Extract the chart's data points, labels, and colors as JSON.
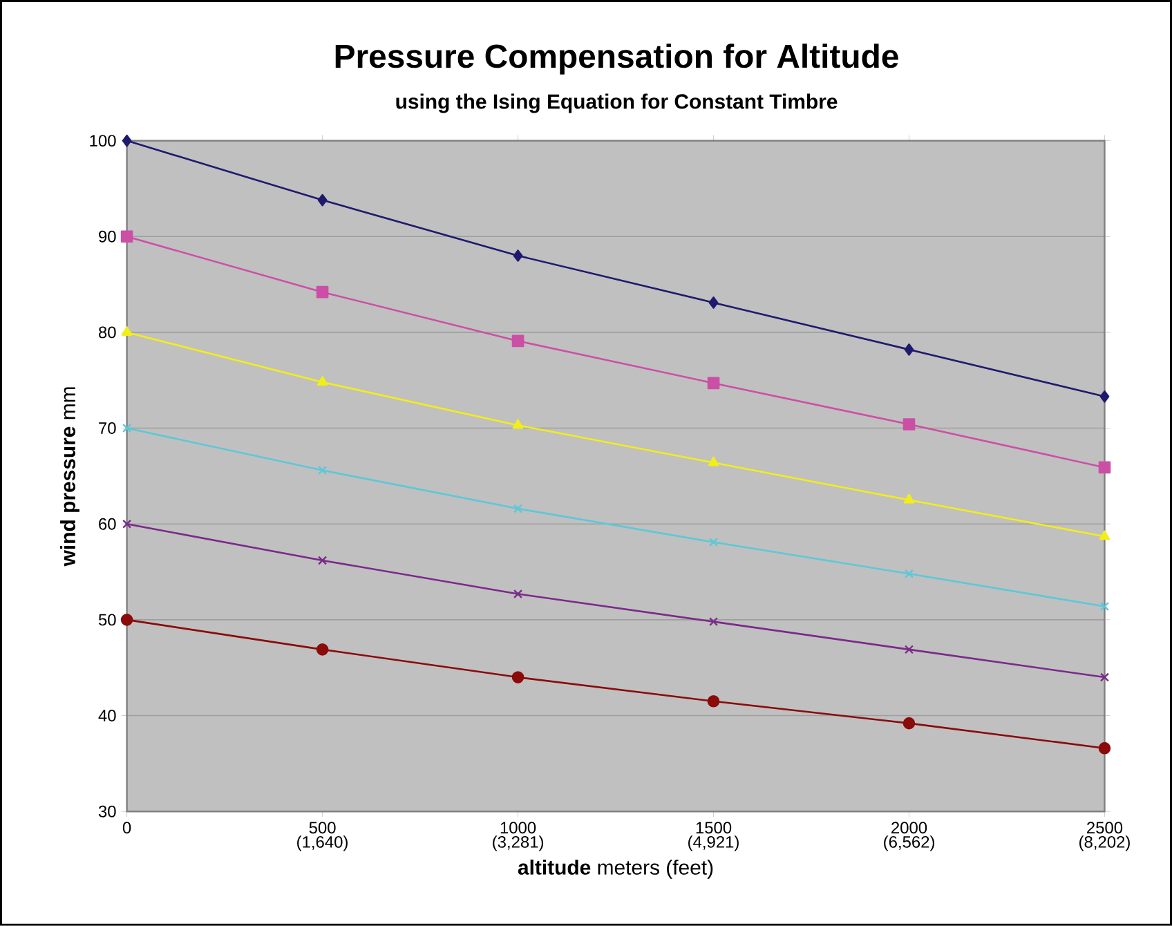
{
  "chart_data": {
    "type": "line",
    "title": "Pressure Compensation for Altitude",
    "subtitle": "using the Ising Equation for Constant Timbre",
    "xlabel": "**altitude** meters (feet)",
    "ylabel": "**wind pressure** mm",
    "x": [
      0,
      500,
      1000,
      1500,
      2000,
      2500
    ],
    "xlim": [
      0,
      2500
    ],
    "xticks": [
      0,
      500,
      1000,
      1500,
      2000,
      2500
    ],
    "x2lim": [
      0,
      8202
    ],
    "x2ticks": [
      {
        "value": 1640,
        "label": "(1,640)"
      },
      {
        "value": 3281,
        "label": "(3,281)"
      },
      {
        "value": 4921,
        "label": "(4,921)"
      },
      {
        "value": 6562,
        "label": "(6,562)"
      },
      {
        "value": 8202,
        "label": "(8,202)"
      }
    ],
    "ylim": [
      30,
      100
    ],
    "yticks": [
      30,
      40,
      50,
      60,
      70,
      80,
      90,
      100
    ],
    "grid": "y",
    "legend": false,
    "line_style": "solid",
    "series": [
      {
        "color": "#1f1a6e",
        "marker": "diamond",
        "values": [
          100,
          93.8,
          88,
          83.1,
          78.2,
          73.3
        ]
      },
      {
        "color": "#cc4fa6",
        "marker": "square",
        "values": [
          90,
          84.2,
          79.1,
          74.7,
          70.4,
          65.9
        ]
      },
      {
        "color": "#f2ee1a",
        "marker": "triangle",
        "values": [
          80,
          74.8,
          70.3,
          66.4,
          62.5,
          58.7
        ]
      },
      {
        "color": "#5cc8d8",
        "marker": "cross",
        "values": [
          70,
          65.6,
          61.6,
          58.1,
          54.8,
          51.4
        ]
      },
      {
        "color": "#7a2a8a",
        "marker": "cross",
        "values": [
          60,
          56.2,
          52.7,
          49.8,
          46.9,
          44
        ]
      },
      {
        "color": "#8b0a0a",
        "marker": "circle",
        "values": [
          50,
          46.9,
          44,
          41.5,
          39.2,
          36.6
        ]
      }
    ]
  }
}
